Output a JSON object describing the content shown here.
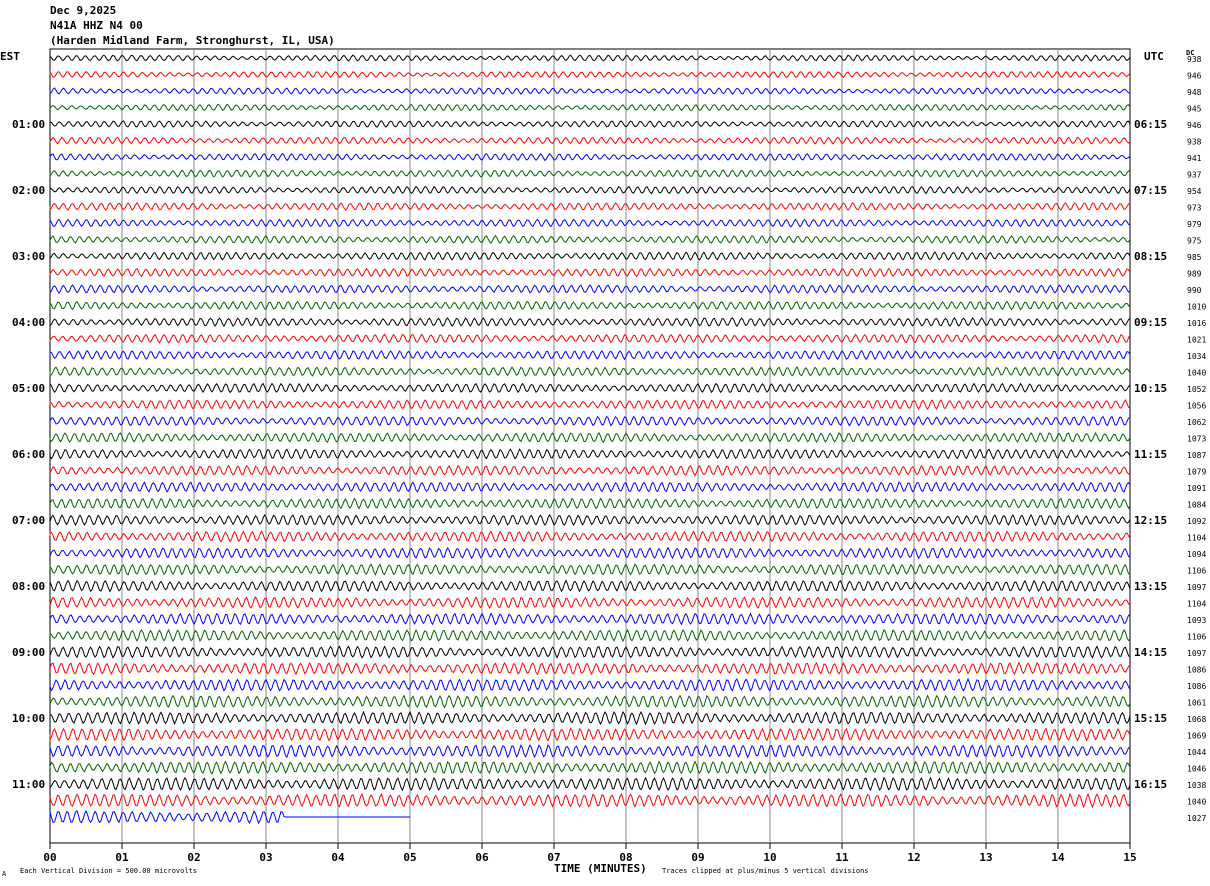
{
  "header": {
    "date": "Dec 9,2025",
    "channel": "N41A HHZ N4 00",
    "location": "(Harden Midland Farm, Stronghurst, IL, USA)"
  },
  "left_tz": "EST",
  "right_tz": "UTC",
  "dc_label": "DC",
  "footer": {
    "scale_note": "Each Vertical Division =  500.00 microvolts",
    "clip_note": "Traces clipped at plus/minus 5 vertical divisions",
    "mark": "A"
  },
  "chart_data": {
    "type": "line",
    "xlabel": "TIME (MINUTES)",
    "xlim": [
      0,
      15
    ],
    "x_ticks": [
      "00",
      "01",
      "02",
      "03",
      "04",
      "05",
      "06",
      "07",
      "08",
      "09",
      "10",
      "11",
      "12",
      "13",
      "14",
      "15"
    ],
    "trace_colors": [
      "#000000",
      "#ff0000",
      "#0000ff",
      "#006400"
    ],
    "trace_count": 47,
    "last_trace_end_minute": 5,
    "hour_labels_est": [
      "01:00",
      "02:00",
      "03:00",
      "04:00",
      "05:00",
      "06:00",
      "07:00",
      "08:00",
      "09:00",
      "10:00",
      "11:00"
    ],
    "hour_labels_utc": [
      "06:15",
      "07:15",
      "08:15",
      "09:15",
      "10:15",
      "11:15",
      "12:15",
      "13:15",
      "14:15",
      "15:15",
      "16:15"
    ],
    "dc_offsets": [
      "938",
      "946",
      "948",
      "945",
      "946",
      "938",
      "941",
      "937",
      "954",
      "973",
      "979",
      "975",
      "985",
      "989",
      "990",
      "1010",
      "1016",
      "1021",
      "1034",
      "1040",
      "1052",
      "1056",
      "1062",
      "1073",
      "1087",
      "1079",
      "1091",
      "1084",
      "1092",
      "1104",
      "1094",
      "1106",
      "1097",
      "1104",
      "1093",
      "1106",
      "1097",
      "1086",
      "1086",
      "1061",
      "1068",
      "1069",
      "1044",
      "1046",
      "1038",
      "1040",
      "1027"
    ]
  }
}
